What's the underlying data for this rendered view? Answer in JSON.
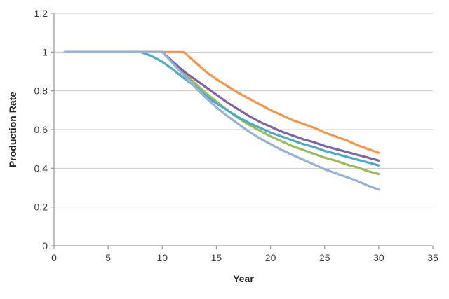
{
  "chart_data": {
    "type": "line",
    "title": "",
    "xlabel": "Year",
    "ylabel": "Production Rate",
    "xlim": [
      0,
      35
    ],
    "ylim": [
      0,
      1.2
    ],
    "x_ticks": [
      0,
      5,
      10,
      15,
      20,
      25,
      30,
      35
    ],
    "x_tick_labels": [
      "0",
      "5",
      "10",
      "15",
      "20",
      "25",
      "30",
      "35"
    ],
    "y_ticks": [
      0,
      0.2,
      0.4,
      0.6,
      0.8,
      1,
      1.2
    ],
    "y_tick_labels": [
      "0",
      "0.2",
      "0.4",
      "0.6",
      "0.8",
      "1",
      "1.2"
    ],
    "grid": "horizontal",
    "legend": "none",
    "x": [
      1,
      2,
      3,
      4,
      5,
      6,
      7,
      8,
      9,
      10,
      11,
      12,
      13,
      14,
      15,
      16,
      17,
      18,
      19,
      20,
      21,
      22,
      23,
      24,
      25,
      26,
      27,
      28,
      29,
      30
    ],
    "series": [
      {
        "name": "orange-series",
        "color": "#F79646",
        "decline_start_year": 12,
        "end_value": 0.48,
        "values": [
          1,
          1,
          1,
          1,
          1,
          1,
          1,
          1,
          1,
          1,
          1,
          1,
          0.95,
          0.9,
          0.86,
          0.825,
          0.79,
          0.76,
          0.73,
          0.7,
          0.675,
          0.65,
          0.63,
          0.61,
          0.585,
          0.565,
          0.545,
          0.52,
          0.5,
          0.48
        ]
      },
      {
        "name": "green-series",
        "color": "#9BBB59",
        "decline_start_year": 10,
        "end_value": 0.37,
        "values": [
          1,
          1,
          1,
          1,
          1,
          1,
          1,
          1,
          1,
          1,
          0.945,
          0.89,
          0.84,
          0.79,
          0.745,
          0.7,
          0.66,
          0.625,
          0.595,
          0.565,
          0.54,
          0.515,
          0.495,
          0.475,
          0.455,
          0.44,
          0.42,
          0.405,
          0.385,
          0.37
        ]
      },
      {
        "name": "purple-series",
        "color": "#8064A2",
        "decline_start_year": 10,
        "end_value": 0.44,
        "values": [
          1,
          1,
          1,
          1,
          1,
          1,
          1,
          1,
          1,
          1,
          0.95,
          0.9,
          0.86,
          0.82,
          0.78,
          0.74,
          0.705,
          0.67,
          0.64,
          0.615,
          0.59,
          0.57,
          0.55,
          0.535,
          0.515,
          0.5,
          0.485,
          0.47,
          0.455,
          0.44
        ]
      },
      {
        "name": "teal-series",
        "color": "#4BACC6",
        "decline_start_year": 8,
        "end_value": 0.415,
        "values": [
          1,
          1,
          1,
          1,
          1,
          1,
          1,
          1,
          0.98,
          0.95,
          0.91,
          0.865,
          0.825,
          0.775,
          0.735,
          0.7,
          0.665,
          0.635,
          0.61,
          0.585,
          0.565,
          0.545,
          0.525,
          0.51,
          0.49,
          0.475,
          0.46,
          0.445,
          0.43,
          0.415
        ]
      },
      {
        "name": "light-blue-series",
        "color": "#95B3D7",
        "decline_start_year": 10,
        "end_value": 0.29,
        "values": [
          1,
          1,
          1,
          1,
          1,
          1,
          1,
          1,
          1,
          1,
          0.94,
          0.88,
          0.82,
          0.765,
          0.715,
          0.67,
          0.63,
          0.59,
          0.555,
          0.525,
          0.495,
          0.47,
          0.445,
          0.42,
          0.395,
          0.375,
          0.355,
          0.335,
          0.31,
          0.29
        ]
      }
    ],
    "style": {
      "gridline_color": "#C9C9C9",
      "axis_color": "#9E9E9E",
      "tick_label_color": "#3A3A3A",
      "line_width": 3.2
    }
  },
  "labels": {
    "xlabel": "Year",
    "ylabel": "Production Rate"
  }
}
